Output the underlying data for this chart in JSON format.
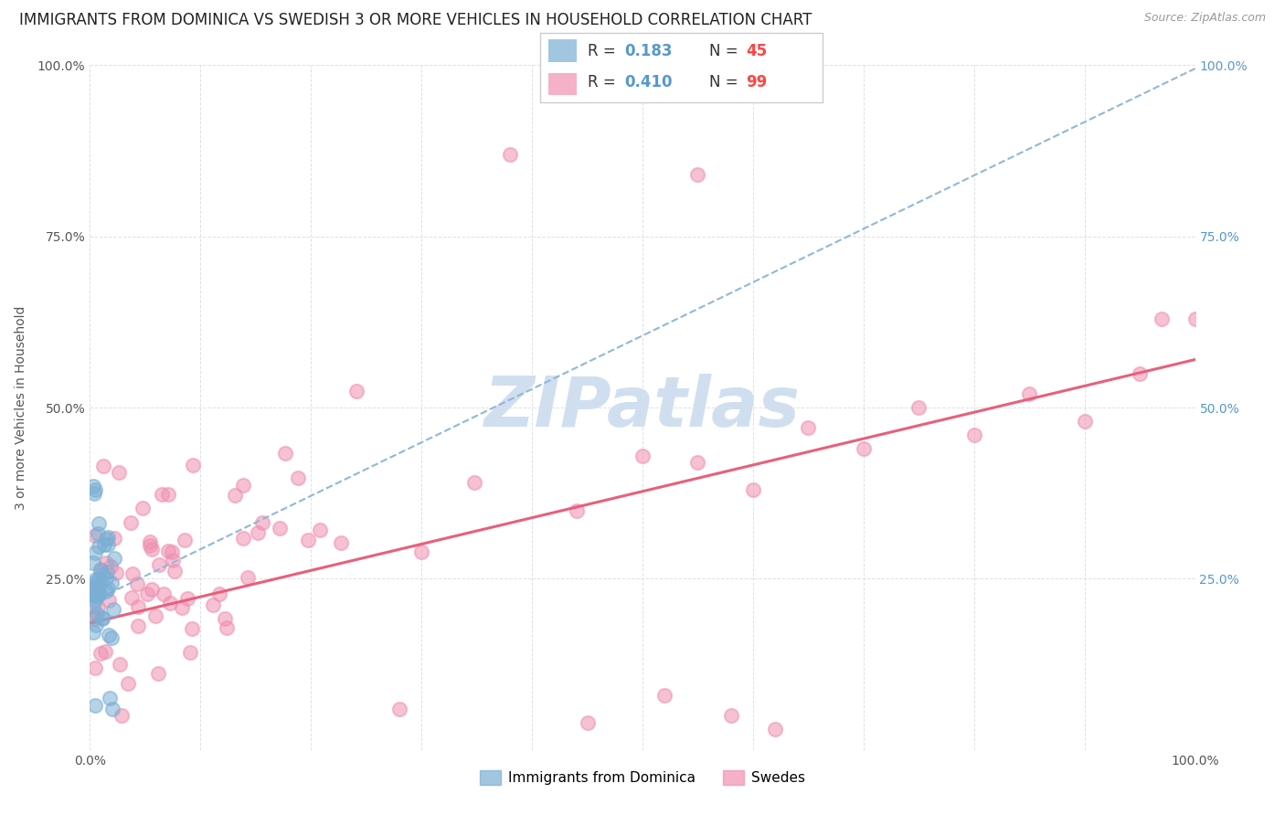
{
  "title": "IMMIGRANTS FROM DOMINICA VS SWEDISH 3 OR MORE VEHICLES IN HOUSEHOLD CORRELATION CHART",
  "source": "Source: ZipAtlas.com",
  "ylabel": "3 or more Vehicles in Household",
  "R_dominica": 0.183,
  "N_dominica": 45,
  "R_swedes": 0.41,
  "N_swedes": 99,
  "dominica_color": "#7aafd4",
  "swedes_color": "#f090b0",
  "dominica_trendline_color": "#90b8d8",
  "swedes_trendline_color": "#e8607a",
  "watermark_color": "#d0dff0",
  "background_color": "#ffffff",
  "grid_color": "#dddddd",
  "title_fontsize": 12,
  "axis_label_fontsize": 10,
  "tick_fontsize": 10,
  "right_tick_color": "#5599cc",
  "legend_r_color": "#5599cc",
  "legend_n_color": "#ff4444"
}
